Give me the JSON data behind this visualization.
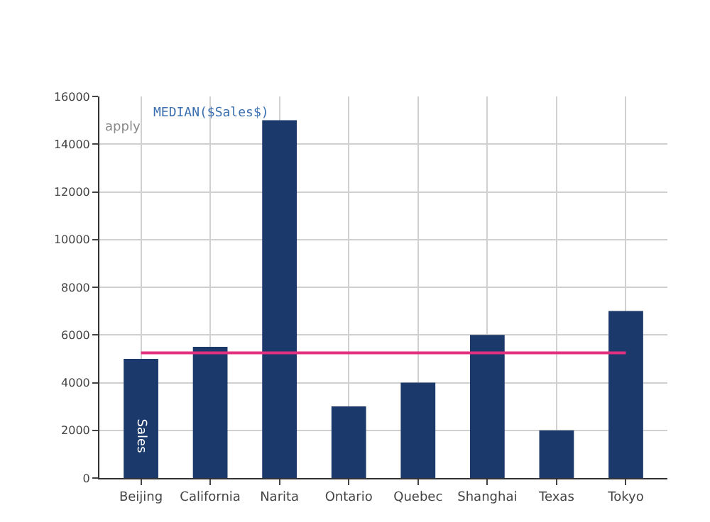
{
  "chart_data": {
    "type": "bar",
    "categories": [
      "Beijing",
      "California",
      "Narita",
      "Ontario",
      "Quebec",
      "Shanghai",
      "Texas",
      "Tokyo"
    ],
    "series": [
      {
        "name": "Sales",
        "color": "#1b3a6b",
        "values": [
          5000,
          5500,
          15000,
          3000,
          4000,
          6000,
          2000,
          7000
        ]
      },
      {
        "type": "line",
        "color": "#e0307f",
        "values": [
          5250,
          5250,
          5250,
          5250,
          5250,
          5250,
          5250,
          5250
        ]
      }
    ],
    "ylim": [
      0,
      16000
    ],
    "yticks": [
      0,
      2000,
      4000,
      6000,
      8000,
      10000,
      12000,
      14000,
      16000
    ],
    "grid": true,
    "legend": false,
    "annotations": [
      "apply",
      "MEDIAN($Sales$)"
    ]
  }
}
